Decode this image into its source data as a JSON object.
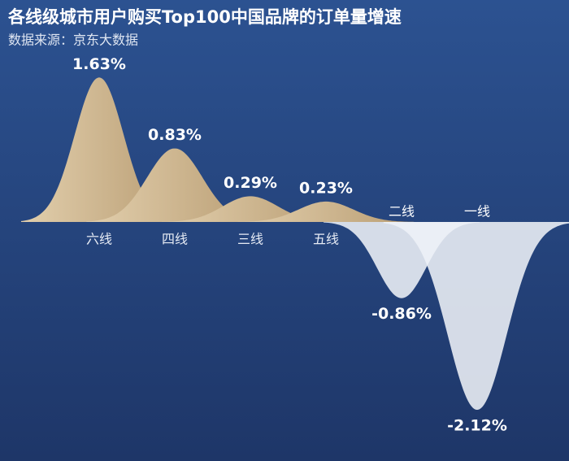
{
  "chart_data": {
    "type": "peak",
    "title": "各线级城市用户购买Top100中国品牌的订单量增速",
    "subtitle": "数据来源：京东大数据",
    "categories": [
      "六线",
      "四线",
      "三线",
      "五线",
      "二线",
      "一线"
    ],
    "values": [
      1.63,
      0.83,
      0.29,
      0.23,
      -0.86,
      -2.12
    ],
    "value_labels": [
      "1.63%",
      "0.83%",
      "0.29%",
      "0.23%",
      "-0.86%",
      "-2.12%"
    ],
    "colors": {
      "positive": "#cdb68f",
      "negative": "#eef1f7"
    }
  }
}
